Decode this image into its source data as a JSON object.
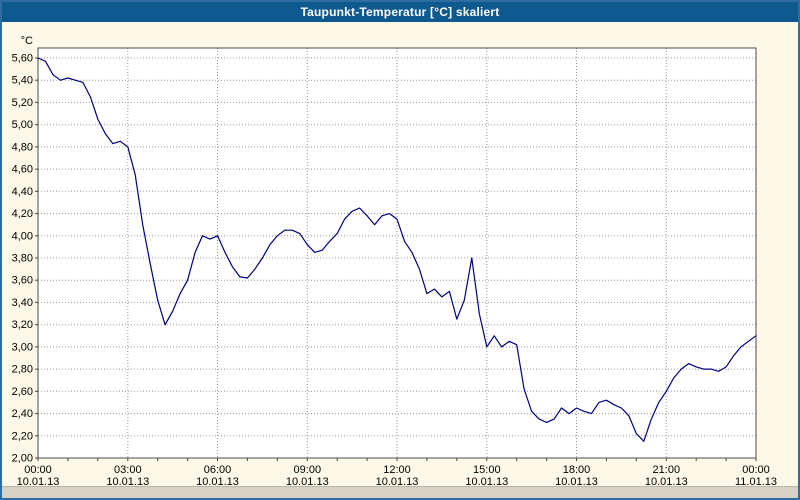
{
  "window": {
    "title": "Taupunkt-Temperatur [°C] skaliert"
  },
  "colors": {
    "titlebar_bg": "#0e5a8e",
    "titlebar_text": "#ffffff",
    "chart_bg": "#fdf8e7",
    "plot_bg": "#ffffff",
    "grid": "#9a9a9a",
    "plot_border": "#4d4d4d",
    "axis_text": "#000000",
    "line": "#000080",
    "outer_border": "#2e6da0",
    "bottom_strip": "#d6d2c6"
  },
  "chart_data": {
    "type": "line",
    "title": "Taupunkt-Temperatur [°C] skaliert",
    "ylabel": "°C",
    "xlabel": "",
    "ylim": [
      2.0,
      5.6
    ],
    "ytick_step": 0.2,
    "y_tick_labels": [
      "5,60",
      "5,40",
      "5,20",
      "5,00",
      "4,80",
      "4,60",
      "4,40",
      "4,20",
      "4,00",
      "3,80",
      "3,60",
      "3,40",
      "3,20",
      "3,00",
      "2,80",
      "2,60",
      "2,40",
      "2,20",
      "2,00"
    ],
    "xlim_hours": [
      0,
      24
    ],
    "x_major_step_hours": 3,
    "x_minor_step_hours": 1,
    "x_ticks": [
      {
        "hour": 0,
        "time": "00:00",
        "date": "10.01.13"
      },
      {
        "hour": 3,
        "time": "03:00",
        "date": "10.01.13"
      },
      {
        "hour": 6,
        "time": "06:00",
        "date": "10.01.13"
      },
      {
        "hour": 9,
        "time": "09:00",
        "date": "10.01.13"
      },
      {
        "hour": 12,
        "time": "12:00",
        "date": "10.01.13"
      },
      {
        "hour": 15,
        "time": "15:00",
        "date": "10.01.13"
      },
      {
        "hour": 18,
        "time": "18:00",
        "date": "10.01.13"
      },
      {
        "hour": 21,
        "time": "21:00",
        "date": "10.01.13"
      },
      {
        "hour": 24,
        "time": "00:00",
        "date": "11.01.13"
      }
    ],
    "grid": true,
    "legend": "none",
    "series": [
      {
        "name": "Taupunkt-Temperatur",
        "color": "#000080",
        "x_hours": [
          0,
          0.25,
          0.5,
          0.75,
          1,
          1.25,
          1.5,
          1.75,
          2,
          2.25,
          2.5,
          2.75,
          3,
          3.25,
          3.5,
          3.75,
          4,
          4.25,
          4.5,
          4.75,
          5,
          5.25,
          5.5,
          5.75,
          6,
          6.25,
          6.5,
          6.75,
          7,
          7.25,
          7.5,
          7.75,
          8,
          8.25,
          8.5,
          8.75,
          9,
          9.25,
          9.5,
          9.75,
          10,
          10.25,
          10.5,
          10.75,
          11,
          11.25,
          11.5,
          11.75,
          12,
          12.25,
          12.5,
          12.75,
          13,
          13.25,
          13.5,
          13.75,
          14,
          14.25,
          14.5,
          14.75,
          15,
          15.25,
          15.5,
          15.75,
          16,
          16.25,
          16.5,
          16.75,
          17,
          17.25,
          17.5,
          17.75,
          18,
          18.25,
          18.5,
          18.75,
          19,
          19.25,
          19.5,
          19.75,
          20,
          20.25,
          20.5,
          20.75,
          21,
          21.25,
          21.5,
          21.75,
          22,
          22.25,
          22.5,
          22.75,
          23,
          23.25,
          23.5,
          23.75,
          24
        ],
        "values": [
          5.6,
          5.57,
          5.45,
          5.4,
          5.42,
          5.4,
          5.38,
          5.25,
          5.05,
          4.92,
          4.83,
          4.85,
          4.8,
          4.55,
          4.1,
          3.75,
          3.42,
          3.2,
          3.32,
          3.48,
          3.6,
          3.85,
          4.0,
          3.97,
          4.0,
          3.85,
          3.72,
          3.63,
          3.62,
          3.7,
          3.8,
          3.92,
          4.0,
          4.05,
          4.05,
          4.02,
          3.92,
          3.85,
          3.87,
          3.95,
          4.02,
          4.15,
          4.22,
          4.25,
          4.18,
          4.1,
          4.18,
          4.2,
          4.15,
          3.95,
          3.85,
          3.7,
          3.48,
          3.52,
          3.45,
          3.5,
          3.25,
          3.42,
          3.8,
          3.3,
          3.0,
          3.1,
          3.0,
          3.05,
          3.02,
          2.62,
          2.42,
          2.35,
          2.32,
          2.35,
          2.45,
          2.4,
          2.45,
          2.42,
          2.4,
          2.5,
          2.52,
          2.48,
          2.45,
          2.38,
          2.22,
          2.15,
          2.35,
          2.5,
          2.6,
          2.72,
          2.8,
          2.85,
          2.82,
          2.8,
          2.8,
          2.78,
          2.82,
          2.92,
          3.0,
          3.05,
          3.1
        ]
      }
    ]
  }
}
